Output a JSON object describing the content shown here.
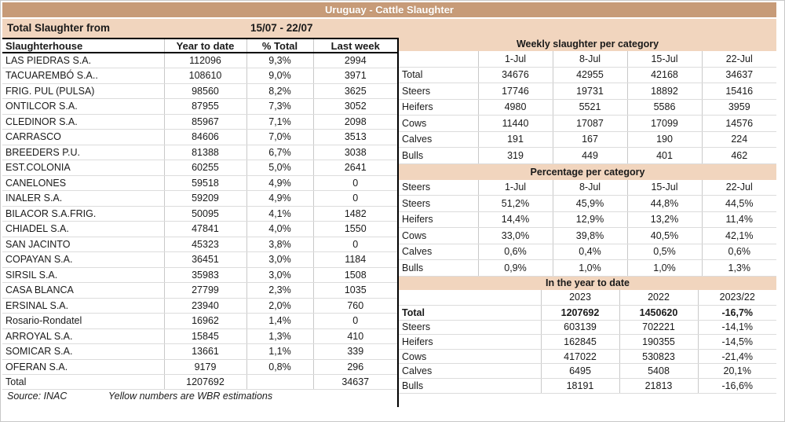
{
  "title": "Uruguay - Cattle Slaughter",
  "subheader": {
    "label": "Total Slaughter from",
    "range": "15/07 - 22/07"
  },
  "colors": {
    "title_bar": "#C79B78",
    "band": "#F1D5BE"
  },
  "left_table": {
    "headers": [
      "Slaughterhouse",
      "Year to date",
      "% Total",
      "Last week"
    ],
    "rows": [
      [
        "LAS PIEDRAS S.A.",
        "112096",
        "9,3%",
        "2994"
      ],
      [
        "TACUAREMBÓ S.A..",
        "108610",
        "9,0%",
        "3971"
      ],
      [
        "FRIG. PUL (PULSA)",
        "98560",
        "8,2%",
        "3625"
      ],
      [
        "ONTILCOR S.A.",
        "87955",
        "7,3%",
        "3052"
      ],
      [
        "CLEDINOR S.A.",
        "85967",
        "7,1%",
        "2098"
      ],
      [
        "CARRASCO",
        "84606",
        "7,0%",
        "3513"
      ],
      [
        "BREEDERS P.U.",
        "81388",
        "6,7%",
        "3038"
      ],
      [
        "EST.COLONIA",
        "60255",
        "5,0%",
        "2641"
      ],
      [
        "CANELONES",
        "59518",
        "4,9%",
        "0"
      ],
      [
        "INALER S.A.",
        "59209",
        "4,9%",
        "0"
      ],
      [
        "BILACOR S.A.FRIG.",
        "50095",
        "4,1%",
        "1482"
      ],
      [
        "CHIADEL S.A.",
        "47841",
        "4,0%",
        "1550"
      ],
      [
        "SAN JACINTO",
        "45323",
        "3,8%",
        "0"
      ],
      [
        "COPAYAN S.A.",
        "36451",
        "3,0%",
        "1184"
      ],
      [
        "SIRSIL S.A.",
        "35983",
        "3,0%",
        "1508"
      ],
      [
        "CASA BLANCA",
        "27799",
        "2,3%",
        "1035"
      ],
      [
        "ERSINAL S.A.",
        "23940",
        "2,0%",
        "760"
      ],
      [
        "Rosario-Rondatel",
        "16962",
        "1,4%",
        "0"
      ],
      [
        "ARROYAL S.A.",
        "15845",
        "1,3%",
        "410"
      ],
      [
        "SOMICAR S.A.",
        "13661",
        "1,1%",
        "339"
      ],
      [
        "OFERAN S.A.",
        "9179",
        "0,8%",
        "296"
      ]
    ],
    "total_rows": [
      [
        "Total",
        "1207692",
        "",
        "34637"
      ]
    ],
    "source": "Source: INAC",
    "note": "Yellow numbers are WBR estimations"
  },
  "weekly": {
    "title": "Weekly slaughter per category",
    "headers": [
      "",
      "1-Jul",
      "8-Jul",
      "15-Jul",
      "22-Jul"
    ],
    "rows": [
      [
        "Total",
        "34676",
        "42955",
        "42168",
        "34637"
      ],
      [
        "Steers",
        "17746",
        "19731",
        "18892",
        "15416"
      ],
      [
        "Heifers",
        "4980",
        "5521",
        "5586",
        "3959"
      ],
      [
        "Cows",
        "11440",
        "17087",
        "17099",
        "14576"
      ],
      [
        "Calves",
        "191",
        "167",
        "190",
        "224"
      ],
      [
        "Bulls",
        "319",
        "449",
        "401",
        "462"
      ]
    ]
  },
  "percentage": {
    "title": "Percentage per category",
    "headers": [
      "Steers",
      "1-Jul",
      "8-Jul",
      "15-Jul",
      "22-Jul"
    ],
    "rows": [
      [
        "Steers",
        "51,2%",
        "45,9%",
        "44,8%",
        "44,5%"
      ],
      [
        "Heifers",
        "14,4%",
        "12,9%",
        "13,2%",
        "11,4%"
      ],
      [
        "Cows",
        "33,0%",
        "39,8%",
        "40,5%",
        "42,1%"
      ],
      [
        "Calves",
        "0,6%",
        "0,4%",
        "0,5%",
        "0,6%"
      ],
      [
        "Bulls",
        "0,9%",
        "1,0%",
        "1,0%",
        "1,3%"
      ]
    ]
  },
  "ytd": {
    "title": "In the year to date",
    "headers": [
      "",
      "2023",
      "2022",
      "2023/22"
    ],
    "bold_row": 0,
    "rows": [
      [
        "Total",
        "1207692",
        "1450620",
        "-16,7%"
      ],
      [
        "Steers",
        "603139",
        "702221",
        "-14,1%"
      ],
      [
        "Heifers",
        "162845",
        "190355",
        "-14,5%"
      ],
      [
        "Cows",
        "417022",
        "530823",
        "-21,4%"
      ],
      [
        "Calves",
        "6495",
        "5408",
        "20,1%"
      ],
      [
        "Bulls",
        "18191",
        "21813",
        "-16,6%"
      ]
    ]
  }
}
